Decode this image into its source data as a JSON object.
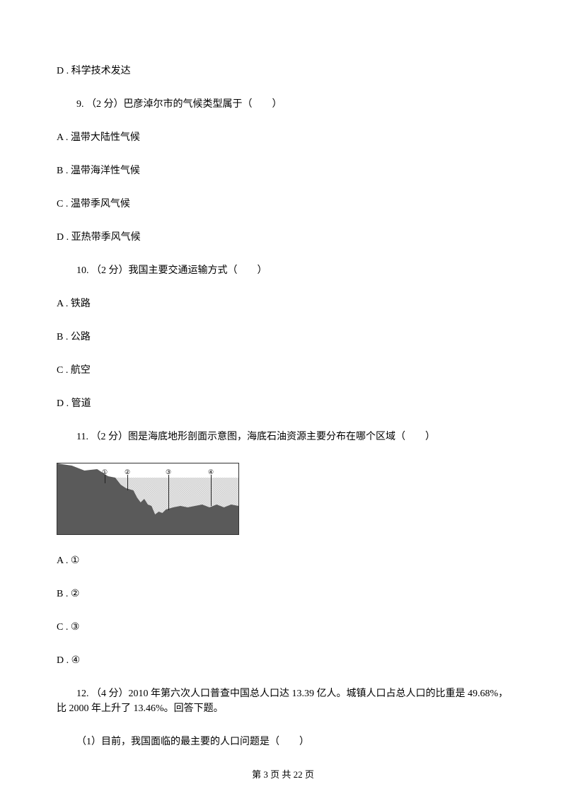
{
  "content": {
    "q8_option_d": "D . 科学技术发达",
    "q9": "9. （2 分）巴彦淖尔市的气候类型属于（　　）",
    "q9_a": "A . 温带大陆性气候",
    "q9_b": "B . 温带海洋性气候",
    "q9_c": "C . 温带季风气候",
    "q9_d": "D . 亚热带季风气候",
    "q10": "10. （2 分）我国主要交通运输方式（　　）",
    "q10_a": "A . 铁路",
    "q10_b": "B . 公路",
    "q10_c": "C . 航空",
    "q10_d": "D . 管道",
    "q11": "11. （2 分）图是海底地形剖面示意图，海底石油资源主要分布在哪个区域（　　）",
    "q11_a": "A . ①",
    "q11_b": "B . ②",
    "q11_c": "C . ③",
    "q11_d": "D . ④",
    "q12": "12. （4 分）2010 年第六次人口普查中国总人口达 13.39 亿人。城镇人口占总人口的比重是 49.68%，比 2000 年上升了 13.46%。回答下题。",
    "q12_sub1": "（1）目前，我国面临的最主要的人口问题是（　　）",
    "markers": {
      "m1": "①",
      "m2": "②",
      "m3": "③",
      "m4": "④"
    },
    "footer": "第 3 页 共 22 页"
  }
}
